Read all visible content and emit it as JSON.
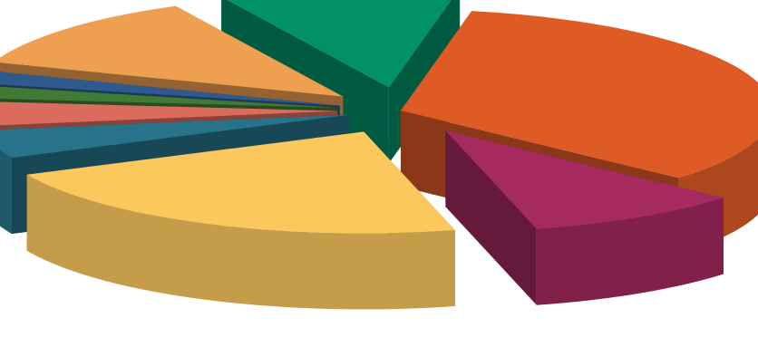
{
  "chart_data": {
    "type": "pie",
    "variant": "3d-exploded",
    "title": "",
    "legend": "none",
    "data_labels": "none",
    "start_angle_deg": 79,
    "slices": [
      {
        "value": 33.5,
        "color": "#DE5B26"
      },
      {
        "value": 9.5,
        "color": "#A52A5F"
      },
      {
        "value": 22.0,
        "color": "#FCC85E"
      },
      {
        "value": 4.5,
        "color": "#27748A"
      },
      {
        "value": 4.0,
        "color": "#DB6C5D"
      },
      {
        "value": 2.0,
        "color": "#417A35"
      },
      {
        "value": 2.0,
        "color": "#2F5A8E"
      },
      {
        "value": 12.0,
        "color": "#EE9F4F"
      },
      {
        "value": 10.5,
        "color": "#009167"
      }
    ]
  }
}
